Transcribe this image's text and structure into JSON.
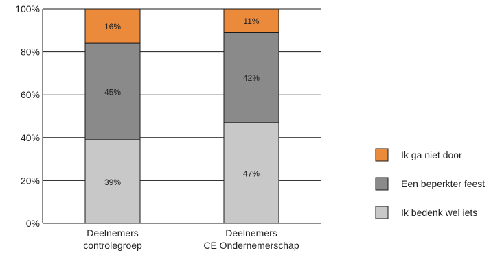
{
  "chart_data": {
    "type": "bar",
    "stacked": true,
    "categories": [
      [
        "Deelnemers",
        "controlegroep"
      ],
      [
        "Deelnemers",
        "CE Ondernemerschap"
      ]
    ],
    "series": [
      {
        "name": "Ik bedenk wel iets",
        "values": [
          39,
          47
        ],
        "labels": [
          "39%",
          "47%"
        ],
        "color": "#c8c8c8"
      },
      {
        "name": "Een beperkter feest",
        "values": [
          45,
          42
        ],
        "labels": [
          "45%",
          "42%"
        ],
        "color": "#8a8a8a"
      },
      {
        "name": "Ik ga niet door",
        "values": [
          16,
          11
        ],
        "labels": [
          "16%",
          "11%"
        ],
        "color": "#ec8a3c"
      }
    ],
    "ylim": [
      0,
      100
    ],
    "yticks": [
      {
        "value": 0,
        "label": "0%"
      },
      {
        "value": 20,
        "label": "20%"
      },
      {
        "value": 40,
        "label": "40%"
      },
      {
        "value": 60,
        "label": "60%"
      },
      {
        "value": 80,
        "label": "80%"
      },
      {
        "value": 100,
        "label": "100%"
      }
    ],
    "grid": true,
    "legend_position": "right",
    "title": "",
    "xlabel": "",
    "ylabel": ""
  }
}
